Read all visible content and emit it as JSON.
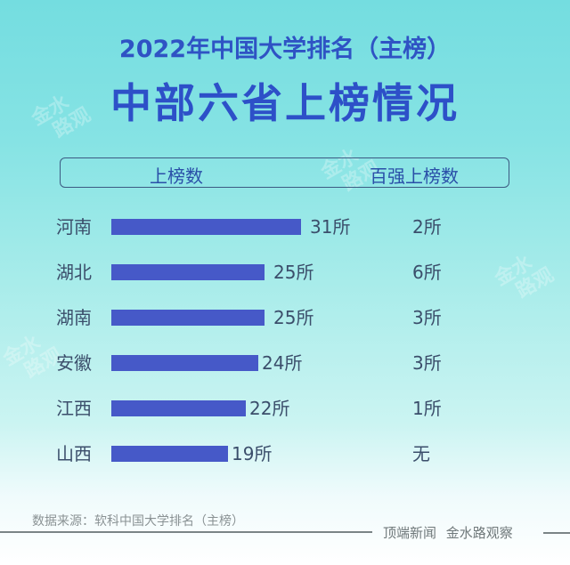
{
  "title": {
    "line1": "2022年中国大学排名（主榜）",
    "line2": "中部六省上榜情况"
  },
  "header": {
    "col1": "上榜数",
    "col2": "百强上榜数"
  },
  "rows": [
    {
      "province": "河南",
      "count": 31,
      "count_label": "31所",
      "top100_label": "2所"
    },
    {
      "province": "湖北",
      "count": 25,
      "count_label": "25所",
      "top100_label": "6所"
    },
    {
      "province": "湖南",
      "count": 25,
      "count_label": "25所",
      "top100_label": "3所"
    },
    {
      "province": "安徽",
      "count": 24,
      "count_label": "24所",
      "top100_label": "3所"
    },
    {
      "province": "江西",
      "count": 22,
      "count_label": "22所",
      "top100_label": "1所"
    },
    {
      "province": "山西",
      "count": 19,
      "count_label": "19所",
      "top100_label": "无"
    }
  ],
  "footer": {
    "source": "数据来源：软科中国大学排名（主榜）",
    "credit": "顶端新闻 金水路观察"
  },
  "watermark": {
    "line1": "金水",
    "line2": "路观"
  },
  "colors": {
    "bar": "#4659c8",
    "title": "#2d50c8",
    "text": "#3b4e6b"
  },
  "chart_data": {
    "type": "bar",
    "orientation": "horizontal",
    "title": "2022年中国大学排名（主榜） 中部六省上榜情况",
    "categories": [
      "河南",
      "湖北",
      "湖南",
      "安徽",
      "江西",
      "山西"
    ],
    "series": [
      {
        "name": "上榜数",
        "values": [
          31,
          25,
          25,
          24,
          22,
          19
        ],
        "unit": "所"
      },
      {
        "name": "百强上榜数",
        "values": [
          2,
          6,
          3,
          3,
          1,
          0
        ],
        "unit": "所",
        "labels": [
          "2所",
          "6所",
          "3所",
          "3所",
          "1所",
          "无"
        ],
        "rendered_as": "text column"
      }
    ],
    "xlabel": "",
    "ylabel": "",
    "source": "数据来源：软科中国大学排名（主榜）",
    "grid": false,
    "legend": "column headers in box at top"
  }
}
